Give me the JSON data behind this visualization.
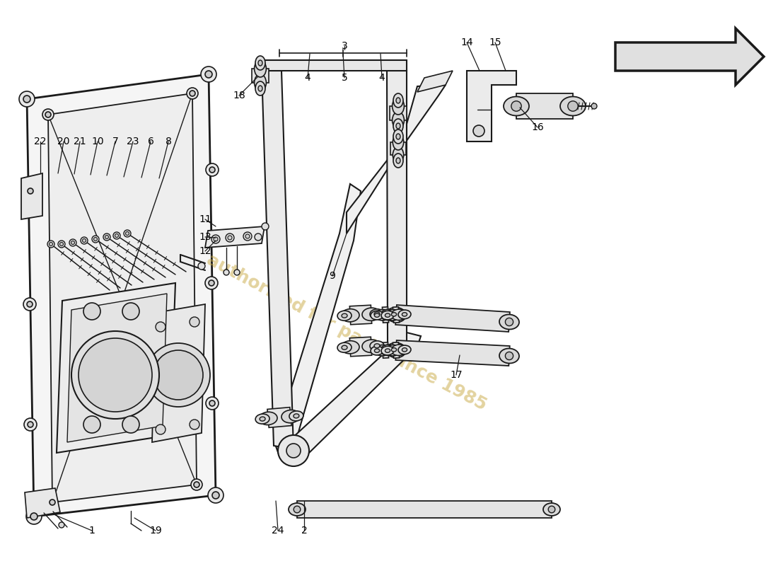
{
  "bg": "#ffffff",
  "lc": "#1a1a1a",
  "wm_color": "#c8a840",
  "wm_text": "authorised for parts since 1985",
  "figsize": [
    11.0,
    8.0
  ],
  "dpi": 100
}
